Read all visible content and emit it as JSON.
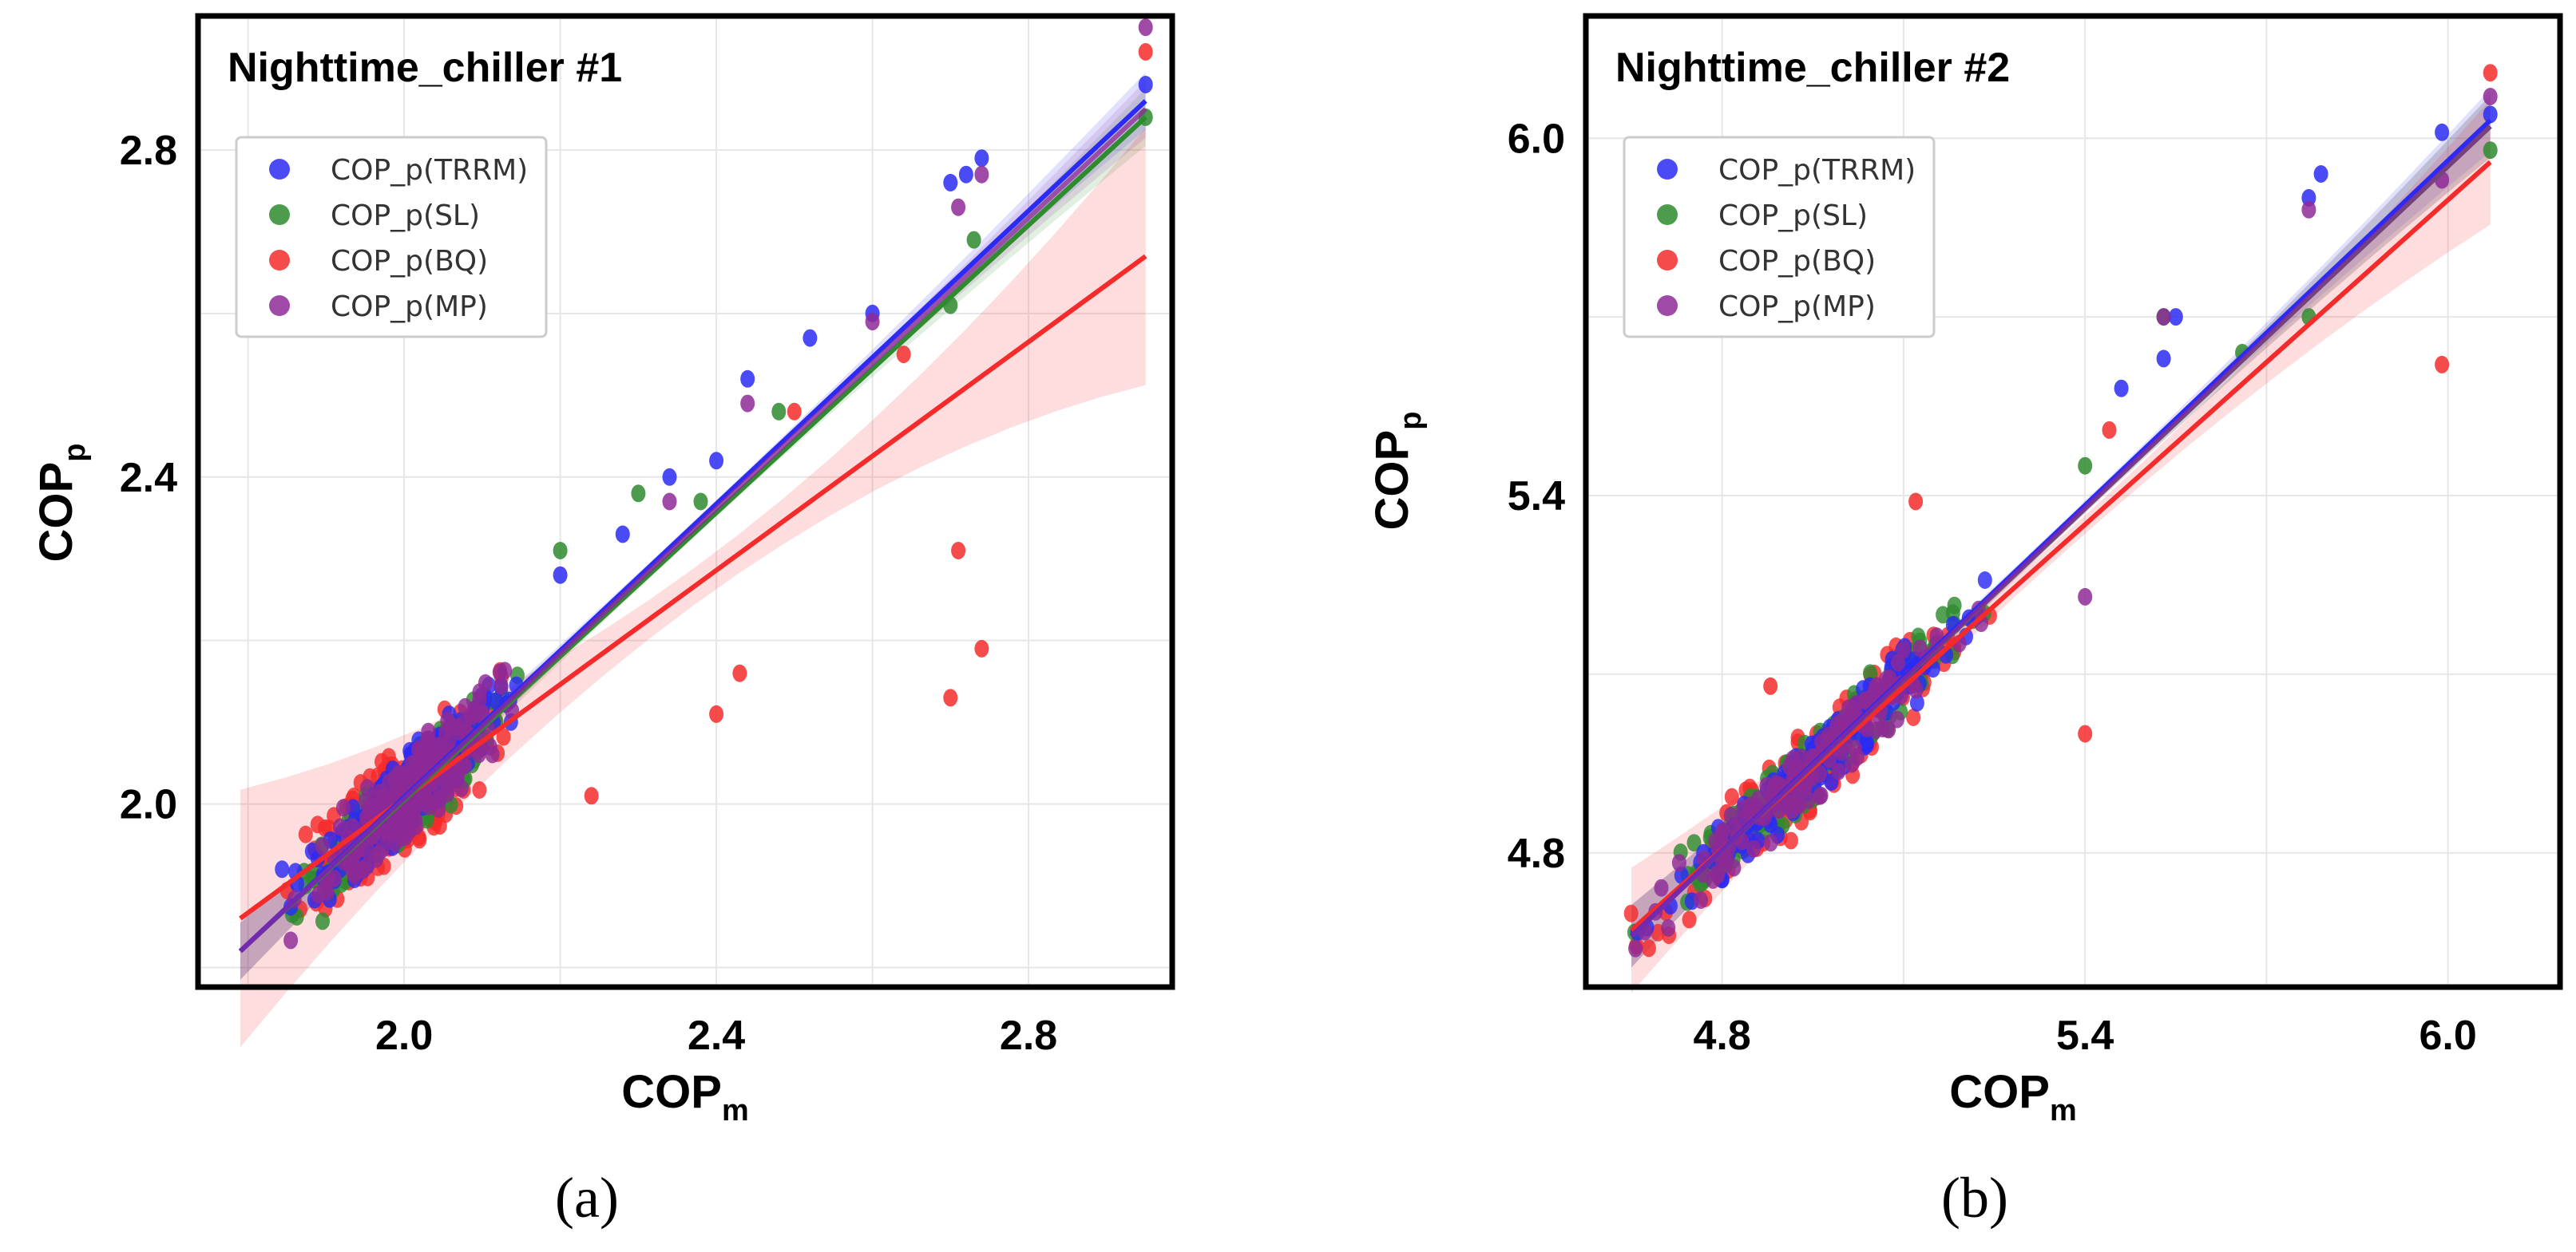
{
  "figure": {
    "colors": {
      "TRRM": "#2b2bf5",
      "SL": "#2e8b2e",
      "BQ": "#f52b2b",
      "MP": "#8e2a96",
      "grid": "#e6e6e6",
      "frame": "#000000"
    }
  },
  "chart_data": [
    {
      "type": "scatter",
      "panel_label": "(a)",
      "title": "Nighttime_chiller #1",
      "xlabel": {
        "main": "COP",
        "sub": "m"
      },
      "ylabel": {
        "main": "COP",
        "sub": "p"
      },
      "xlim": [
        1.74,
        2.98
      ],
      "ylim": [
        1.78,
        2.96
      ],
      "xticks": [
        "2.0",
        "2.4",
        "2.8"
      ],
      "xtick_values": [
        2.0,
        2.4,
        2.8
      ],
      "yticks": [
        "2.0",
        "2.4",
        "2.8"
      ],
      "ytick_values": [
        2.0,
        2.4,
        2.8
      ],
      "grid": true,
      "legend_position": "upper-left",
      "series": [
        {
          "name": "COP_p(TRRM)",
          "key": "TRRM",
          "fit": {
            "x0": 1.79,
            "y0": 1.82,
            "x1": 2.95,
            "y1": 2.86
          },
          "extra_points": [
            [
              2.34,
              2.4
            ],
            [
              2.4,
              2.42
            ],
            [
              2.44,
              2.52
            ],
            [
              2.52,
              2.57
            ],
            [
              2.6,
              2.6
            ],
            [
              2.7,
              2.76
            ],
            [
              2.72,
              2.77
            ],
            [
              2.74,
              2.79
            ],
            [
              2.95,
              2.88
            ],
            [
              2.2,
              2.28
            ],
            [
              2.28,
              2.33
            ]
          ]
        },
        {
          "name": "COP_p(SL)",
          "key": "SL",
          "fit": {
            "x0": 1.79,
            "y0": 1.82,
            "x1": 2.95,
            "y1": 2.84
          },
          "extra_points": [
            [
              2.7,
              2.61
            ],
            [
              2.73,
              2.69
            ],
            [
              2.95,
              2.84
            ],
            [
              2.38,
              2.37
            ],
            [
              2.48,
              2.48
            ],
            [
              2.2,
              2.31
            ],
            [
              2.3,
              2.38
            ]
          ]
        },
        {
          "name": "COP_p(BQ)",
          "key": "BQ",
          "fit": {
            "x0": 1.79,
            "y0": 1.86,
            "x1": 2.95,
            "y1": 2.67
          },
          "extra_points": [
            [
              2.24,
              2.01
            ],
            [
              2.4,
              2.11
            ],
            [
              2.43,
              2.16
            ],
            [
              2.7,
              2.13
            ],
            [
              2.71,
              2.31
            ],
            [
              2.74,
              2.19
            ],
            [
              2.95,
              2.92
            ],
            [
              2.64,
              2.55
            ],
            [
              2.5,
              2.48
            ]
          ]
        },
        {
          "name": "COP_p(MP)",
          "key": "MP",
          "fit": {
            "x0": 1.79,
            "y0": 1.82,
            "x1": 2.95,
            "y1": 2.85
          },
          "extra_points": [
            [
              2.71,
              2.73
            ],
            [
              2.74,
              2.77
            ],
            [
              2.95,
              2.95
            ],
            [
              2.6,
              2.59
            ],
            [
              2.44,
              2.49
            ],
            [
              2.34,
              2.37
            ]
          ]
        }
      ],
      "cluster": {
        "x_center": 2.0,
        "x_spread": 0.11,
        "slope": 0.88,
        "noise": 0.06,
        "count": 220
      },
      "bands": {
        "TRRM": 0.02,
        "SL": 0.02,
        "BQ": 0.09,
        "MP": 0.02
      }
    },
    {
      "type": "scatter",
      "panel_label": "(b)",
      "title": "Nighttime_chiller #2",
      "xlabel": {
        "main": "COP",
        "sub": "m"
      },
      "ylabel": {
        "main": "COP",
        "sub": "p"
      },
      "xlim": [
        4.58,
        6.18
      ],
      "ylim": [
        4.58,
        6.2
      ],
      "xticks": [
        "4.8",
        "5.4",
        "6.0"
      ],
      "xtick_values": [
        4.8,
        5.4,
        6.0
      ],
      "yticks": [
        "4.8",
        "5.4",
        "6.0"
      ],
      "ytick_values": [
        4.8,
        5.4,
        6.0
      ],
      "grid": true,
      "legend_position": "upper-left",
      "series": [
        {
          "name": "COP_p(TRRM)",
          "key": "TRRM",
          "fit": {
            "x0": 4.65,
            "y0": 4.66,
            "x1": 6.07,
            "y1": 6.03
          },
          "extra_points": [
            [
              5.46,
              5.58
            ],
            [
              5.55,
              5.7
            ],
            [
              5.77,
              5.9
            ],
            [
              5.79,
              5.94
            ],
            [
              5.99,
              6.01
            ],
            [
              6.07,
              6.04
            ],
            [
              5.53,
              5.63
            ]
          ]
        },
        {
          "name": "COP_p(SL)",
          "key": "SL",
          "fit": {
            "x0": 4.65,
            "y0": 4.66,
            "x1": 6.07,
            "y1": 6.02
          },
          "extra_points": [
            [
              5.53,
              5.7
            ],
            [
              5.77,
              5.7
            ],
            [
              5.66,
              5.64
            ],
            [
              6.07,
              5.98
            ],
            [
              5.4,
              5.45
            ]
          ]
        },
        {
          "name": "COP_p(BQ)",
          "key": "BQ",
          "fit": {
            "x0": 4.65,
            "y0": 4.67,
            "x1": 6.07,
            "y1": 5.96
          },
          "extra_points": [
            [
              5.4,
              5.0
            ],
            [
              5.99,
              5.62
            ],
            [
              5.12,
              5.39
            ],
            [
              6.07,
              6.11
            ],
            [
              5.44,
              5.51
            ],
            [
              4.88,
              5.08
            ]
          ]
        },
        {
          "name": "COP_p(MP)",
          "key": "MP",
          "fit": {
            "x0": 4.65,
            "y0": 4.66,
            "x1": 6.07,
            "y1": 6.02
          },
          "extra_points": [
            [
              5.4,
              5.23
            ],
            [
              5.53,
              5.7
            ],
            [
              5.77,
              5.88
            ],
            [
              6.07,
              6.07
            ],
            [
              5.99,
              5.93
            ]
          ]
        }
      ],
      "cluster": {
        "x_center": 4.95,
        "x_spread": 0.22,
        "slope": 0.95,
        "noise": 0.07,
        "count": 150
      },
      "bands": {
        "TRRM": 0.03,
        "SL": 0.03,
        "BQ": 0.06,
        "MP": 0.03
      }
    }
  ]
}
